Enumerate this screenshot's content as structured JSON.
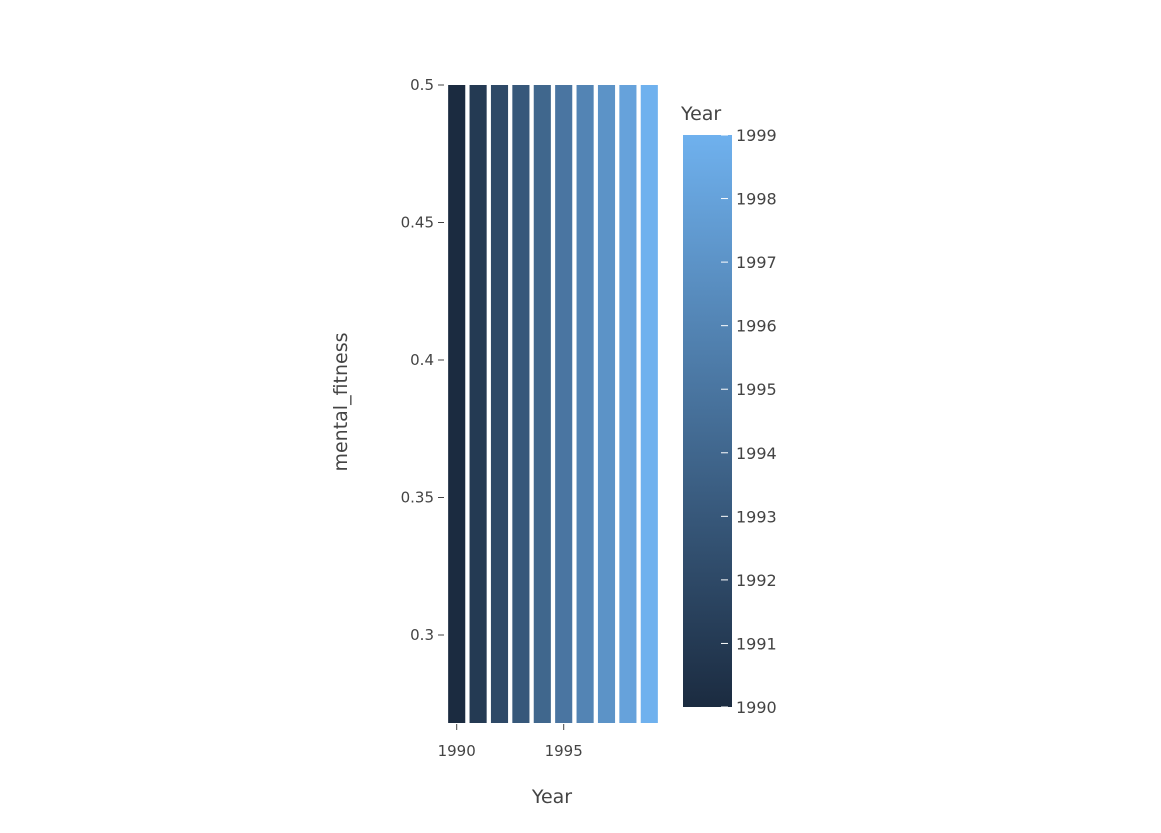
{
  "chart_data": {
    "type": "bar",
    "xlabel": "Year",
    "ylabel": "mental_fitness",
    "x": [
      1990,
      1991,
      1992,
      1993,
      1994,
      1995,
      1996,
      1997,
      1998,
      1999
    ],
    "values": [
      0.5,
      0.5,
      0.5,
      0.5,
      0.5,
      0.5,
      0.5,
      0.5,
      0.5,
      0.5
    ],
    "ylim": [
      0.268,
      0.5
    ],
    "xlim": [
      1989.5,
      1999.5
    ],
    "yticks": [
      0.3,
      0.35,
      0.4,
      0.45,
      0.5
    ],
    "ytick_labels": [
      "0.3",
      "0.35",
      "0.4",
      "0.45",
      "0.5"
    ],
    "xticks": [
      1990,
      1995
    ],
    "xtick_labels": [
      "1990",
      "1995"
    ],
    "grid": false,
    "colorbar": {
      "title": "Year",
      "min": 1990,
      "max": 1999,
      "ticks": [
        1990,
        1991,
        1992,
        1993,
        1994,
        1995,
        1996,
        1997,
        1998,
        1999
      ],
      "tick_labels": [
        "1990",
        "1991",
        "1992",
        "1993",
        "1994",
        "1995",
        "1996",
        "1997",
        "1998",
        "1999"
      ],
      "color_low": "#1b2b40",
      "color_high": "#6fb1ee"
    }
  }
}
